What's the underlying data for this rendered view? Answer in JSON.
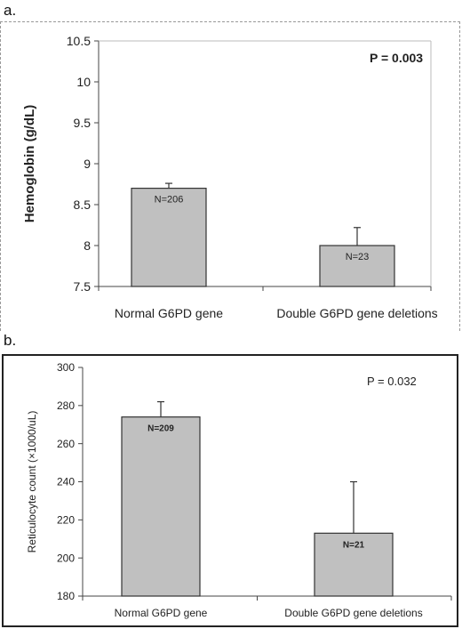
{
  "panels": {
    "a_label": "a.",
    "b_label": "b."
  },
  "chart_data": [
    {
      "type": "bar",
      "categories": [
        "Normal G6PD gene",
        "Double G6PD gene deletions"
      ],
      "values": [
        8.7,
        8.0
      ],
      "error_upper": [
        0.06,
        0.22
      ],
      "bar_labels": [
        "N=206",
        "N=23"
      ],
      "ylabel": "Hemoglobin (g/dL)",
      "xlabel": "",
      "ylim": [
        7.5,
        10.5
      ],
      "yticks": [
        7.5,
        8,
        8.5,
        9,
        9.5,
        10,
        10.5
      ],
      "ytick_labels": [
        "7.5",
        "8",
        "8.5",
        "9",
        "9.5",
        "10",
        "10.5"
      ],
      "annotation": "P = 0.003",
      "bar_color": "#c0c0c0",
      "grid": false
    },
    {
      "type": "bar",
      "categories": [
        "Normal G6PD gene",
        "Double G6PD gene deletions"
      ],
      "values": [
        274,
        213
      ],
      "error_upper": [
        8,
        27
      ],
      "bar_labels": [
        "N=209",
        "N=21"
      ],
      "ylabel": "Reticulocyte count (×1000/uL)",
      "xlabel": "",
      "ylim": [
        180,
        300
      ],
      "yticks": [
        180,
        200,
        220,
        240,
        260,
        280,
        300
      ],
      "ytick_labels": [
        "180",
        "200",
        "220",
        "240",
        "260",
        "280",
        "300"
      ],
      "annotation": "P = 0.032",
      "bar_color": "#c0c0c0",
      "grid": false
    }
  ]
}
